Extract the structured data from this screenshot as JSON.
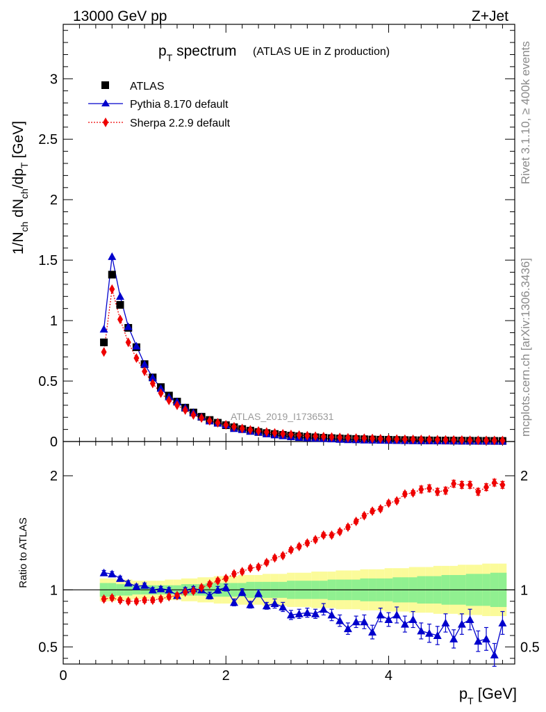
{
  "header": {
    "energy": "13000 GeV pp",
    "process": "Z+Jet"
  },
  "side_labels": {
    "rivet": "Rivet 3.1.10, ≥ 400k events",
    "mcplots": "mcplots.cern.ch [arXiv:1306.3436]"
  },
  "analysis_tag": "ATLAS_2019_I1736531",
  "chart_data": [
    {
      "type": "scatter",
      "title_main": "p",
      "title_sub": "T",
      "title_rest": " spectrum",
      "subtitle": "(ATLAS UE in Z production)",
      "ylabel": "1/N_ch dN_ch/dp_T [GeV]",
      "ylim": [
        0,
        3.45
      ],
      "xlim": [
        0,
        5.55
      ],
      "yticks": [
        0,
        0.5,
        1,
        1.5,
        2,
        2.5,
        3
      ],
      "ytick_labels": [
        "0",
        "0.5",
        "1",
        "1.5",
        "2",
        "2.5",
        "3"
      ],
      "x": [
        0.5,
        0.6,
        0.7,
        0.8,
        0.9,
        1.0,
        1.1,
        1.2,
        1.3,
        1.4,
        1.5,
        1.6,
        1.7,
        1.8,
        1.9,
        2.0,
        2.1,
        2.2,
        2.3,
        2.4,
        2.5,
        2.6,
        2.7,
        2.8,
        2.9,
        3.0,
        3.1,
        3.2,
        3.3,
        3.4,
        3.5,
        3.6,
        3.7,
        3.8,
        3.9,
        4.0,
        4.1,
        4.2,
        4.3,
        4.4,
        4.5,
        4.6,
        4.7,
        4.8,
        4.9,
        5.0,
        5.1,
        5.2,
        5.3,
        5.4
      ],
      "series": [
        {
          "name": "ATLAS",
          "marker": "square",
          "color": "#000000",
          "values": [
            0.82,
            1.38,
            1.13,
            0.94,
            0.78,
            0.64,
            0.53,
            0.45,
            0.38,
            0.33,
            0.28,
            0.24,
            0.205,
            0.178,
            0.155,
            0.135,
            0.118,
            0.103,
            0.09,
            0.079,
            0.07,
            0.062,
            0.055,
            0.049,
            0.044,
            0.039,
            0.035,
            0.031,
            0.028,
            0.025,
            0.023,
            0.021,
            0.019,
            0.017,
            0.015,
            0.014,
            0.013,
            0.012,
            0.011,
            0.01,
            0.009,
            0.0085,
            0.008,
            0.0075,
            0.007,
            0.0065,
            0.006,
            0.0056,
            0.0052,
            0.0048
          ]
        },
        {
          "name": "Pythia 8.170 default",
          "marker": "triangle",
          "color": "#0000cc",
          "values": [
            0.93,
            1.53,
            1.2,
            0.95,
            0.79,
            0.64,
            0.53,
            0.44,
            0.37,
            0.33,
            0.28,
            0.24,
            0.205,
            0.17,
            0.153,
            0.138,
            0.108,
            0.1,
            0.085,
            0.078,
            0.064,
            0.055,
            0.048,
            0.04,
            0.034,
            0.03,
            0.027,
            0.025,
            0.022,
            0.019,
            0.016,
            0.015,
            0.013,
            0.012,
            0.011,
            0.01,
            0.009,
            0.008,
            0.0075,
            0.007,
            0.0065,
            0.006,
            0.0055,
            0.005,
            0.0045,
            0.0042,
            0.004,
            0.0038,
            0.0035,
            0.0033
          ]
        },
        {
          "name": "Sherpa 2.2.9 default",
          "marker": "diamond",
          "color": "#ee0000",
          "values": [
            0.74,
            1.26,
            1.01,
            0.82,
            0.69,
            0.58,
            0.48,
            0.4,
            0.34,
            0.3,
            0.26,
            0.22,
            0.195,
            0.172,
            0.155,
            0.138,
            0.122,
            0.108,
            0.096,
            0.087,
            0.078,
            0.071,
            0.064,
            0.058,
            0.053,
            0.048,
            0.044,
            0.04,
            0.037,
            0.034,
            0.031,
            0.029,
            0.027,
            0.025,
            0.023,
            0.021,
            0.02,
            0.019,
            0.018,
            0.017,
            0.016,
            0.015,
            0.014,
            0.013,
            0.012,
            0.011,
            0.01,
            0.0095,
            0.009,
            0.0085
          ]
        }
      ]
    },
    {
      "type": "scatter",
      "ylabel": "Ratio to ATLAS",
      "ylim": [
        0.35,
        2.3
      ],
      "xlim": [
        0,
        5.55
      ],
      "xlabel_main": "p",
      "xlabel_sub": "T",
      "xlabel_rest": " [GeV]",
      "yticks": [
        0.5,
        1,
        2
      ],
      "ytick_labels": [
        "0.5",
        "1",
        "2"
      ],
      "xticks": [
        0,
        2,
        4
      ],
      "xtick_labels": [
        "0",
        "2",
        "4"
      ],
      "reference": 1,
      "band_inner": [
        0.06,
        0.06,
        0.05,
        0.05,
        0.04,
        0.04,
        0.04,
        0.04,
        0.04,
        0.04,
        0.05,
        0.05,
        0.05,
        0.06,
        0.06,
        0.06,
        0.06,
        0.06,
        0.07,
        0.07,
        0.07,
        0.07,
        0.07,
        0.08,
        0.08,
        0.08,
        0.08,
        0.08,
        0.09,
        0.09,
        0.09,
        0.09,
        0.1,
        0.1,
        0.1,
        0.1,
        0.11,
        0.11,
        0.11,
        0.12,
        0.12,
        0.12,
        0.13,
        0.13,
        0.13,
        0.14,
        0.14,
        0.14,
        0.15,
        0.15
      ],
      "band_outer": [
        0.1,
        0.1,
        0.09,
        0.09,
        0.08,
        0.08,
        0.08,
        0.08,
        0.09,
        0.09,
        0.1,
        0.1,
        0.11,
        0.11,
        0.12,
        0.12,
        0.12,
        0.13,
        0.13,
        0.13,
        0.14,
        0.14,
        0.14,
        0.15,
        0.15,
        0.15,
        0.16,
        0.16,
        0.16,
        0.17,
        0.17,
        0.17,
        0.18,
        0.18,
        0.18,
        0.19,
        0.19,
        0.19,
        0.2,
        0.2,
        0.2,
        0.21,
        0.21,
        0.21,
        0.22,
        0.22,
        0.22,
        0.23,
        0.23,
        0.23
      ],
      "series": [
        {
          "name": "Pythia 8.170 default",
          "marker": "triangle",
          "color": "#0000cc",
          "values": [
            1.15,
            1.14,
            1.1,
            1.06,
            1.03,
            1.04,
            1.0,
            1.01,
            1.0,
            0.95,
            1.0,
            1.01,
            1.0,
            0.95,
            1.0,
            1.02,
            0.89,
            0.98,
            0.87,
            0.97,
            0.86,
            0.88,
            0.85,
            0.78,
            0.79,
            0.8,
            0.79,
            0.83,
            0.78,
            0.73,
            0.66,
            0.72,
            0.72,
            0.63,
            0.78,
            0.74,
            0.78,
            0.7,
            0.74,
            0.64,
            0.62,
            0.6,
            0.71,
            0.57,
            0.7,
            0.74,
            0.55,
            0.57,
            0.43,
            0.71
          ],
          "errors": [
            0.02,
            0.02,
            0.02,
            0.02,
            0.02,
            0.02,
            0.02,
            0.02,
            0.02,
            0.02,
            0.02,
            0.02,
            0.02,
            0.03,
            0.03,
            0.03,
            0.03,
            0.03,
            0.03,
            0.03,
            0.03,
            0.04,
            0.04,
            0.04,
            0.04,
            0.04,
            0.04,
            0.05,
            0.05,
            0.05,
            0.05,
            0.05,
            0.06,
            0.06,
            0.06,
            0.06,
            0.07,
            0.07,
            0.07,
            0.07,
            0.08,
            0.08,
            0.08,
            0.08,
            0.09,
            0.09,
            0.09,
            0.1,
            0.1,
            0.1
          ]
        },
        {
          "name": "Sherpa 2.2.9 default",
          "marker": "diamond",
          "color": "#ee0000",
          "values": [
            0.92,
            0.93,
            0.91,
            0.9,
            0.9,
            0.91,
            0.91,
            0.92,
            0.94,
            0.95,
            0.98,
            0.99,
            1.02,
            1.05,
            1.08,
            1.1,
            1.14,
            1.16,
            1.19,
            1.2,
            1.24,
            1.28,
            1.3,
            1.35,
            1.38,
            1.41,
            1.44,
            1.48,
            1.48,
            1.51,
            1.55,
            1.6,
            1.65,
            1.69,
            1.71,
            1.76,
            1.78,
            1.84,
            1.85,
            1.88,
            1.89,
            1.86,
            1.87,
            1.93,
            1.92,
            1.92,
            1.86,
            1.9,
            1.94,
            1.92
          ],
          "errors": [
            0.02,
            0.02,
            0.02,
            0.02,
            0.02,
            0.02,
            0.02,
            0.02,
            0.02,
            0.02,
            0.02,
            0.02,
            0.02,
            0.02,
            0.02,
            0.02,
            0.02,
            0.02,
            0.02,
            0.02,
            0.02,
            0.02,
            0.02,
            0.02,
            0.02,
            0.02,
            0.02,
            0.02,
            0.02,
            0.02,
            0.02,
            0.02,
            0.02,
            0.02,
            0.02,
            0.02,
            0.02,
            0.02,
            0.02,
            0.03,
            0.03,
            0.03,
            0.03,
            0.03,
            0.03,
            0.03,
            0.03,
            0.03,
            0.03,
            0.03
          ]
        }
      ]
    }
  ]
}
